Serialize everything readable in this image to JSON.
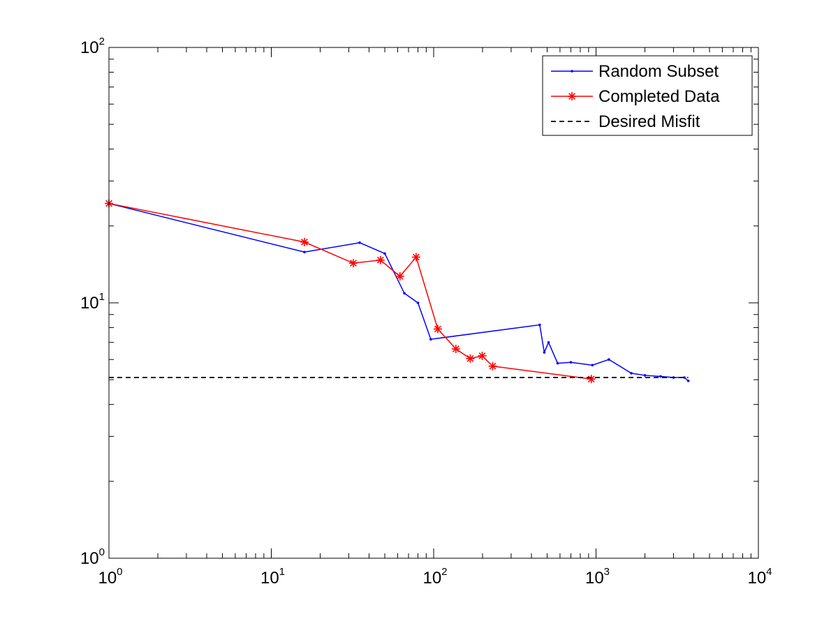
{
  "chart_data": {
    "type": "line",
    "title": "",
    "xlabel": "",
    "ylabel": "",
    "xscale": "log",
    "yscale": "log",
    "xlim": [
      1,
      10000
    ],
    "ylim": [
      1,
      100
    ],
    "grid": false,
    "legend_position": "top-right",
    "x_tick_labels": [
      {
        "value": 1,
        "base": "10",
        "exp": "0"
      },
      {
        "value": 10,
        "base": "10",
        "exp": "1"
      },
      {
        "value": 100,
        "base": "10",
        "exp": "2"
      },
      {
        "value": 1000,
        "base": "10",
        "exp": "3"
      },
      {
        "value": 10000,
        "base": "10",
        "exp": "4"
      }
    ],
    "y_tick_labels": [
      {
        "value": 1,
        "base": "10",
        "exp": "0"
      },
      {
        "value": 10,
        "base": "10",
        "exp": "1"
      },
      {
        "value": 100,
        "base": "10",
        "exp": "2"
      }
    ],
    "series": [
      {
        "name": "Random Subset",
        "color": "#0000ff",
        "marker": "dot",
        "line": "solid",
        "x": [
          1,
          16,
          35,
          50,
          66,
          80,
          96,
          450,
          480,
          510,
          580,
          700,
          950,
          1200,
          1650,
          2000,
          2500,
          3000,
          3500,
          3700
        ],
        "y": [
          24.5,
          15.8,
          17.2,
          15.6,
          10.9,
          10.0,
          7.2,
          8.2,
          6.4,
          7.0,
          5.8,
          5.85,
          5.7,
          6.0,
          5.3,
          5.2,
          5.15,
          5.1,
          5.1,
          4.95
        ]
      },
      {
        "name": "Completed Data",
        "color": "#ff0000",
        "marker": "star",
        "line": "solid",
        "x": [
          1,
          16,
          32,
          47,
          62,
          78,
          106,
          137,
          168,
          199,
          231,
          935
        ],
        "y": [
          24.5,
          17.3,
          14.3,
          14.7,
          12.7,
          15.1,
          7.9,
          6.6,
          6.05,
          6.2,
          5.65,
          5.03
        ]
      },
      {
        "name": "Desired Misfit",
        "color": "#000000",
        "marker": "none",
        "line": "dashed",
        "x": [
          1,
          3700
        ],
        "y": [
          5.1,
          5.1
        ]
      }
    ]
  }
}
